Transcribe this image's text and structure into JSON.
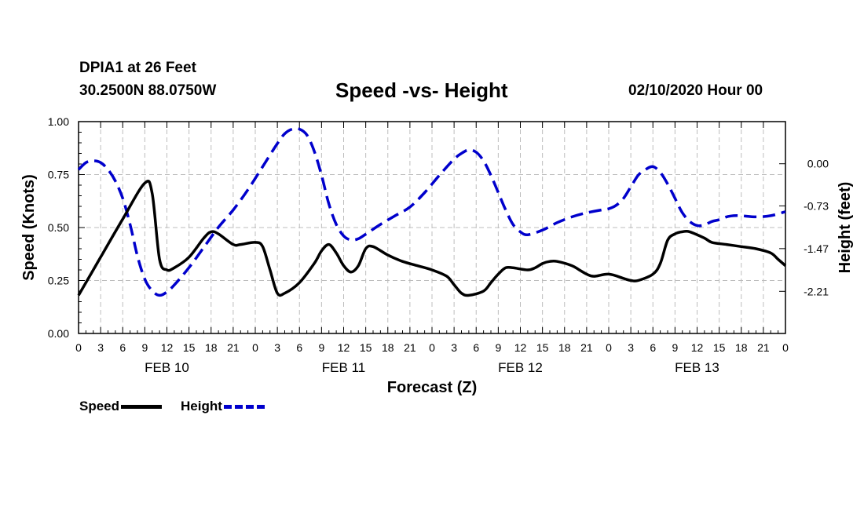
{
  "header": {
    "station": "DPIA1 at 26 Feet",
    "coordinates": "30.2500N 88.0750W",
    "title": "Speed -vs- Height",
    "run_time": "02/10/2020 Hour 00"
  },
  "chart_data": {
    "type": "line",
    "title": "Speed -vs- Height",
    "xlabel": "Forecast (Z)",
    "ylabel_left": "Speed (Knots)",
    "ylabel_right": "Height (feet)",
    "x_unit": "forecast hour",
    "xlim": [
      0,
      96
    ],
    "ylim_left": [
      0,
      1.0
    ],
    "ylim_right": [
      -2.94,
      0.73
    ],
    "left_ticks": [
      {
        "value": 0.0,
        "label": "0.00"
      },
      {
        "value": 0.25,
        "label": "0.25"
      },
      {
        "value": 0.5,
        "label": "0.50"
      },
      {
        "value": 0.75,
        "label": "0.75"
      },
      {
        "value": 1.0,
        "label": "1.00"
      }
    ],
    "right_ticks": [
      {
        "value": 0.0,
        "label": "0.00"
      },
      {
        "value": -0.73,
        "label": "-0.73"
      },
      {
        "value": -1.47,
        "label": "-1.47"
      },
      {
        "value": -2.21,
        "label": "-2.21"
      }
    ],
    "x_tick_labels": [
      "0",
      "3",
      "6",
      "9",
      "12",
      "15",
      "18",
      "21",
      "0",
      "3",
      "6",
      "9",
      "12",
      "15",
      "18",
      "21",
      "0",
      "3",
      "6",
      "9",
      "12",
      "15",
      "18",
      "21",
      "0",
      "3",
      "6",
      "9",
      "12",
      "15",
      "18",
      "21",
      "0"
    ],
    "date_labels": [
      {
        "hour": 12,
        "label": "FEB 10"
      },
      {
        "hour": 36,
        "label": "FEB 11"
      },
      {
        "hour": 60,
        "label": "FEB 12"
      },
      {
        "hour": 84,
        "label": "FEB 13"
      }
    ],
    "grid": true,
    "series": [
      {
        "name": "Speed",
        "axis": "left",
        "color": "#000000",
        "style": "solid",
        "points": [
          [
            0,
            0.18
          ],
          [
            3,
            0.36
          ],
          [
            6,
            0.54
          ],
          [
            9,
            0.71
          ],
          [
            10,
            0.66
          ],
          [
            11,
            0.35
          ],
          [
            12,
            0.3
          ],
          [
            13,
            0.31
          ],
          [
            15,
            0.36
          ],
          [
            17,
            0.45
          ],
          [
            18,
            0.48
          ],
          [
            19,
            0.47
          ],
          [
            21,
            0.42
          ],
          [
            22,
            0.42
          ],
          [
            24,
            0.43
          ],
          [
            25,
            0.41
          ],
          [
            26,
            0.3
          ],
          [
            27,
            0.19
          ],
          [
            28,
            0.19
          ],
          [
            30,
            0.24
          ],
          [
            32,
            0.33
          ],
          [
            33,
            0.39
          ],
          [
            34,
            0.42
          ],
          [
            35,
            0.38
          ],
          [
            36,
            0.32
          ],
          [
            37,
            0.29
          ],
          [
            38,
            0.32
          ],
          [
            39,
            0.4
          ],
          [
            40,
            0.41
          ],
          [
            42,
            0.37
          ],
          [
            44,
            0.34
          ],
          [
            46,
            0.32
          ],
          [
            48,
            0.3
          ],
          [
            50,
            0.27
          ],
          [
            51,
            0.23
          ],
          [
            52,
            0.19
          ],
          [
            53,
            0.18
          ],
          [
            55,
            0.2
          ],
          [
            56,
            0.24
          ],
          [
            57,
            0.28
          ],
          [
            58,
            0.31
          ],
          [
            59,
            0.31
          ],
          [
            61,
            0.3
          ],
          [
            62,
            0.31
          ],
          [
            63,
            0.33
          ],
          [
            64,
            0.34
          ],
          [
            65,
            0.34
          ],
          [
            67,
            0.32
          ],
          [
            68,
            0.3
          ],
          [
            69,
            0.28
          ],
          [
            70,
            0.27
          ],
          [
            72,
            0.28
          ],
          [
            74,
            0.26
          ],
          [
            75,
            0.25
          ],
          [
            76,
            0.25
          ],
          [
            78,
            0.28
          ],
          [
            79,
            0.33
          ],
          [
            80,
            0.44
          ],
          [
            81,
            0.47
          ],
          [
            82,
            0.48
          ],
          [
            83,
            0.48
          ],
          [
            85,
            0.45
          ],
          [
            86,
            0.43
          ],
          [
            88,
            0.42
          ],
          [
            90,
            0.41
          ],
          [
            92,
            0.4
          ],
          [
            94,
            0.38
          ],
          [
            95,
            0.35
          ],
          [
            96,
            0.32
          ]
        ]
      },
      {
        "name": "Height",
        "axis": "right",
        "color": "#0000cc",
        "style": "dashed",
        "points": [
          [
            0,
            -0.1
          ],
          [
            1,
            0.02
          ],
          [
            2,
            0.05
          ],
          [
            3,
            0.02
          ],
          [
            4,
            -0.1
          ],
          [
            5,
            -0.3
          ],
          [
            6,
            -0.6
          ],
          [
            7,
            -1.05
          ],
          [
            8,
            -1.6
          ],
          [
            9,
            -2.0
          ],
          [
            10,
            -2.2
          ],
          [
            11,
            -2.28
          ],
          [
            12,
            -2.22
          ],
          [
            13,
            -2.1
          ],
          [
            15,
            -1.8
          ],
          [
            17,
            -1.45
          ],
          [
            19,
            -1.1
          ],
          [
            21,
            -0.8
          ],
          [
            23,
            -0.45
          ],
          [
            25,
            -0.05
          ],
          [
            27,
            0.35
          ],
          [
            28,
            0.52
          ],
          [
            29,
            0.6
          ],
          [
            30,
            0.6
          ],
          [
            31,
            0.5
          ],
          [
            32,
            0.22
          ],
          [
            33,
            -0.2
          ],
          [
            34,
            -0.7
          ],
          [
            35,
            -1.05
          ],
          [
            36,
            -1.25
          ],
          [
            37,
            -1.32
          ],
          [
            38,
            -1.3
          ],
          [
            39,
            -1.22
          ],
          [
            41,
            -1.05
          ],
          [
            43,
            -0.9
          ],
          [
            45,
            -0.75
          ],
          [
            47,
            -0.5
          ],
          [
            49,
            -0.2
          ],
          [
            51,
            0.08
          ],
          [
            52,
            0.18
          ],
          [
            53,
            0.24
          ],
          [
            54,
            0.2
          ],
          [
            55,
            0.05
          ],
          [
            56,
            -0.2
          ],
          [
            57,
            -0.5
          ],
          [
            58,
            -0.8
          ],
          [
            59,
            -1.05
          ],
          [
            60,
            -1.18
          ],
          [
            61,
            -1.23
          ],
          [
            63,
            -1.15
          ],
          [
            65,
            -1.02
          ],
          [
            67,
            -0.92
          ],
          [
            69,
            -0.85
          ],
          [
            71,
            -0.8
          ],
          [
            72,
            -0.78
          ],
          [
            73,
            -0.72
          ],
          [
            74,
            -0.6
          ],
          [
            75,
            -0.4
          ],
          [
            76,
            -0.2
          ],
          [
            77,
            -0.1
          ],
          [
            78,
            -0.05
          ],
          [
            79,
            -0.15
          ],
          [
            80,
            -0.35
          ],
          [
            81,
            -0.6
          ],
          [
            82,
            -0.85
          ],
          [
            83,
            -1.0
          ],
          [
            84,
            -1.07
          ],
          [
            85,
            -1.06
          ],
          [
            86,
            -1.0
          ],
          [
            87,
            -0.97
          ],
          [
            88,
            -0.92
          ],
          [
            89,
            -0.9
          ],
          [
            90,
            -0.9
          ],
          [
            92,
            -0.92
          ],
          [
            94,
            -0.9
          ],
          [
            96,
            -0.83
          ]
        ]
      }
    ]
  },
  "legend": {
    "speed_label": "Speed",
    "height_label": "Height"
  }
}
